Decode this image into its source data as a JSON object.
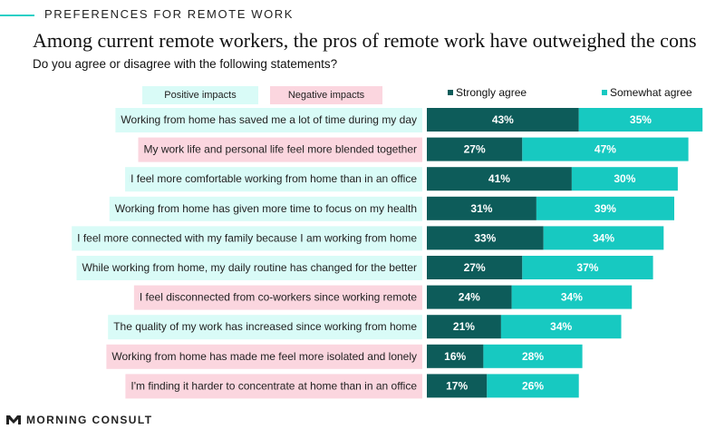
{
  "header": {
    "kicker": "PREFERENCES FOR REMOTE WORK",
    "title": "Among current remote workers, the pros of remote work have outweighed the cons",
    "subtitle": "Do you agree or disagree with the following statements?"
  },
  "legend": {
    "positive_label": "Positive impacts",
    "negative_label": "Negative impacts",
    "positive_color": "#d9fbf7",
    "negative_color": "#fbd6df"
  },
  "brand": {
    "name": "MORNING CONSULT",
    "icon": "morning-consult-logo-icon"
  },
  "chart_data": {
    "type": "bar",
    "orientation": "horizontal",
    "stacked": true,
    "title": "Among current remote workers, the pros of remote work have outweighed the cons",
    "subtitle": "Do you agree or disagree with the following statements?",
    "legend_position": "top-right",
    "grid": false,
    "xlim": [
      0,
      100
    ],
    "categories": [
      "Working from home has saved me a lot of time during my day",
      "My work life and personal life feel more blended together",
      "I feel more comfortable working from home than in an office",
      "Working from home has given more time to focus on my health",
      "I feel more connected with my family because I am working from home",
      "While working from home, my daily routine has changed for the better",
      "I feel disconnected from co-workers since working remote",
      "The quality of my work has increased since working from home",
      "Working from home has made me feel more isolated and lonely",
      "I'm finding it harder to concentrate at home than in an office"
    ],
    "category_impact": [
      "positive",
      "negative",
      "positive",
      "positive",
      "positive",
      "positive",
      "negative",
      "positive",
      "negative",
      "negative"
    ],
    "series": [
      {
        "name": "Strongly agree",
        "color": "#0d5c5a",
        "values": [
          43,
          27,
          41,
          31,
          33,
          27,
          24,
          21,
          16,
          17
        ]
      },
      {
        "name": "Somewhat agree",
        "color": "#17c9c1",
        "values": [
          35,
          47,
          30,
          39,
          34,
          37,
          34,
          34,
          28,
          26
        ]
      }
    ],
    "value_suffix": "%"
  }
}
